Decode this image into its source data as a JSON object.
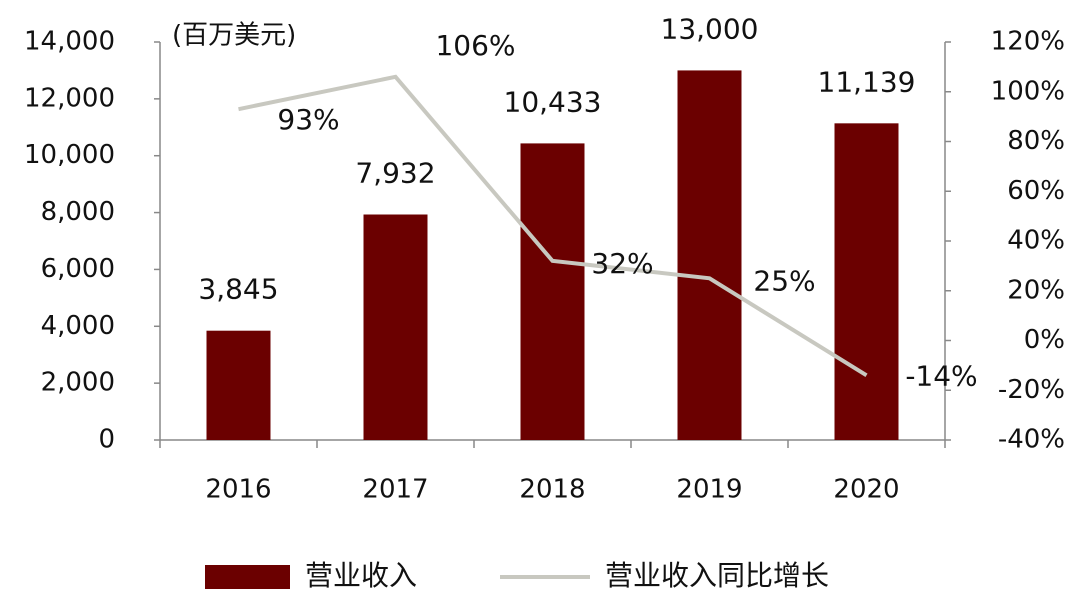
{
  "chart_data": {
    "type": "bar",
    "ylabel": "(百万美元)",
    "categories": [
      "2016",
      "2017",
      "2018",
      "2019",
      "2020"
    ],
    "series": [
      {
        "name": "营业收入",
        "type": "bar",
        "color": "#6b0000",
        "values": [
          3845,
          7932,
          10433,
          13000,
          11139
        ],
        "value_labels": [
          "3,845",
          "7,932",
          "10,433",
          "13,000",
          "11,139"
        ]
      },
      {
        "name": "营业收入同比增长",
        "type": "line",
        "axis": "y2",
        "color": "#c8c8c0",
        "values": [
          93,
          106,
          32,
          25,
          -14
        ],
        "value_labels": [
          "93%",
          "106%",
          "32%",
          "25%",
          "-14%"
        ]
      }
    ],
    "ylim": [
      0,
      14000
    ],
    "yticks": [
      0,
      {
        "value": 2000,
        "label": "2,000"
      },
      {
        "value": 4000,
        "label": "4,000"
      },
      {
        "value": 6000,
        "label": "6,000"
      },
      {
        "value": 8000,
        "label": "8,000"
      },
      {
        "value": 10000,
        "label": "10,000"
      },
      {
        "value": 12000,
        "label": "12,000"
      },
      {
        "value": 14000,
        "label": "14,000"
      }
    ],
    "y2lim": [
      -40,
      120
    ],
    "y2ticks": [
      {
        "value": -40,
        "label": "-40%"
      },
      {
        "value": -20,
        "label": "-20%"
      },
      {
        "value": 0,
        "label": "0%"
      },
      {
        "value": 20,
        "label": "20%"
      },
      {
        "value": 40,
        "label": "40%"
      },
      {
        "value": 60,
        "label": "60%"
      },
      {
        "value": 80,
        "label": "80%"
      },
      {
        "value": 100,
        "label": "100%"
      },
      {
        "value": 120,
        "label": "120%"
      }
    ],
    "legend": "bottom"
  }
}
